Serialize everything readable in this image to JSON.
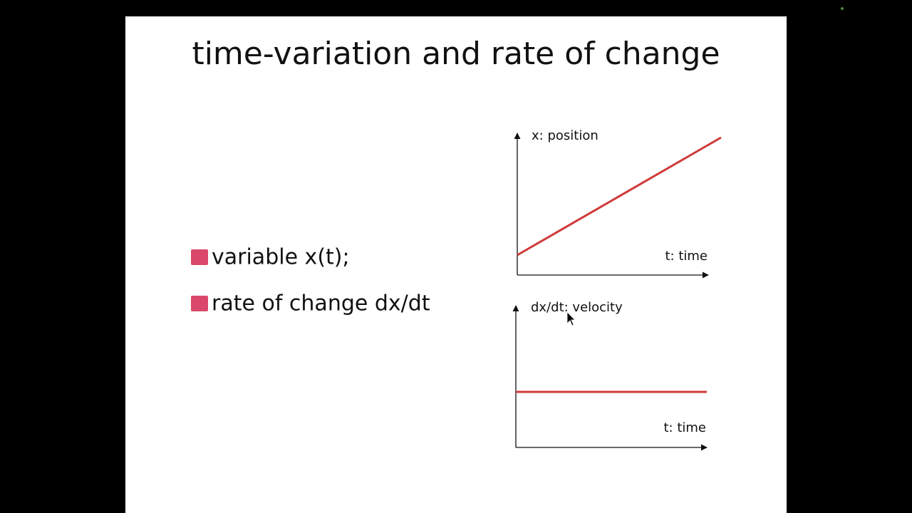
{
  "slide": {
    "title": "time-variation and rate of change",
    "bullets": [
      "variable x(t);",
      "rate of change dx/dt"
    ],
    "graphs": [
      {
        "y_label": "x: position",
        "x_label": "t: time"
      },
      {
        "y_label": "dx/dt: velocity",
        "x_label": "t: time"
      }
    ]
  }
}
